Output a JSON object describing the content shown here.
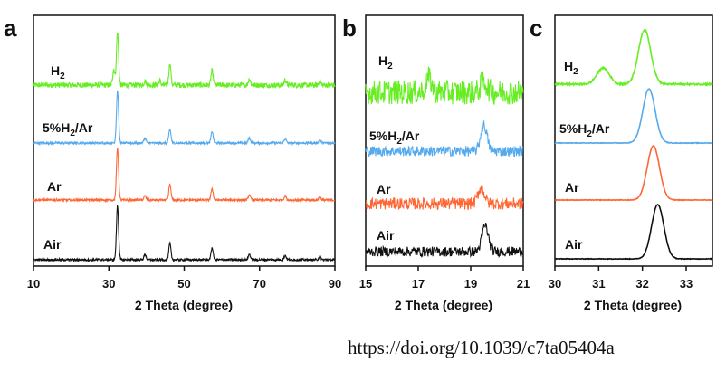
{
  "doi": "https://doi.org/10.1039/c7ta05404a",
  "colors": {
    "H2": "#66ee22",
    "5%H2/Ar": "#55aaee",
    "Ar": "#ff6633",
    "Air": "#111111"
  },
  "chart_data": [
    {
      "panel": "a",
      "type": "line",
      "xlabel": "2 Theta (degree)",
      "xlim": [
        10,
        90
      ],
      "xticks": [
        10,
        30,
        50,
        70,
        90
      ],
      "y_ticks_shown": false,
      "series": [
        {
          "name": "H2",
          "label_sub": "2",
          "label_main": "H",
          "label_tail": "",
          "peaks": [
            [
              31.3,
              0.3
            ],
            [
              32.3,
              1.0
            ],
            [
              39.6,
              0.08
            ],
            [
              43.5,
              0.08
            ],
            [
              46.2,
              0.4
            ],
            [
              57.4,
              0.27
            ],
            [
              67.3,
              0.12
            ],
            [
              76.8,
              0.1
            ],
            [
              86.0,
              0.07
            ]
          ],
          "noise": 0.05
        },
        {
          "name": "5%H2/Ar",
          "label_main": "5%H",
          "label_sub": "2",
          "label_tail": "/Ar",
          "peaks": [
            [
              32.3,
              1.0
            ],
            [
              39.6,
              0.1
            ],
            [
              46.2,
              0.26
            ],
            [
              57.4,
              0.22
            ],
            [
              67.3,
              0.1
            ],
            [
              76.8,
              0.08
            ],
            [
              86.0,
              0.06
            ]
          ],
          "noise": 0.02
        },
        {
          "name": "Ar",
          "label_main": "Ar",
          "label_sub": "",
          "label_tail": "",
          "peaks": [
            [
              32.3,
              1.0
            ],
            [
              39.6,
              0.08
            ],
            [
              46.2,
              0.3
            ],
            [
              57.4,
              0.22
            ],
            [
              67.3,
              0.1
            ],
            [
              76.8,
              0.08
            ],
            [
              86.0,
              0.06
            ]
          ],
          "noise": 0.02
        },
        {
          "name": "Air",
          "label_main": "Air",
          "label_sub": "",
          "label_tail": "",
          "peaks": [
            [
              32.3,
              1.0
            ],
            [
              39.6,
              0.1
            ],
            [
              46.2,
              0.3
            ],
            [
              57.4,
              0.22
            ],
            [
              67.3,
              0.1
            ],
            [
              76.8,
              0.08
            ],
            [
              86.0,
              0.06
            ]
          ],
          "noise": 0.02
        }
      ]
    },
    {
      "panel": "b",
      "type": "line",
      "xlabel": "2 Theta (degree)",
      "xlim": [
        15,
        21
      ],
      "xticks": [
        15,
        17,
        19,
        21
      ],
      "y_ticks_shown": false,
      "series": [
        {
          "name": "H2",
          "label_main": "H",
          "label_sub": "2",
          "label_tail": "",
          "peaks": [
            [
              17.4,
              0.5
            ],
            [
              19.5,
              0.4
            ]
          ],
          "noise": 0.45
        },
        {
          "name": "5%H2/Ar",
          "label_main": "5%H",
          "label_sub": "2",
          "label_tail": "/Ar",
          "peaks": [
            [
              19.5,
              0.8
            ]
          ],
          "noise": 0.16
        },
        {
          "name": "Ar",
          "label_main": "Ar",
          "label_sub": "",
          "label_tail": "",
          "peaks": [
            [
              19.4,
              0.6
            ]
          ],
          "noise": 0.22
        },
        {
          "name": "Air",
          "label_main": "Air",
          "label_sub": "",
          "label_tail": "",
          "peaks": [
            [
              19.55,
              0.85
            ]
          ],
          "noise": 0.16
        }
      ]
    },
    {
      "panel": "c",
      "type": "line",
      "xlabel": "2 Theta (degree)",
      "xlim": [
        30,
        33.6
      ],
      "xticks": [
        30,
        31,
        32,
        33
      ],
      "y_ticks_shown": false,
      "series": [
        {
          "name": "H2",
          "label_main": "H",
          "label_sub": "2",
          "label_tail": "",
          "peaks": [
            [
              31.1,
              0.3
            ],
            [
              32.05,
              1.0
            ]
          ],
          "noise": 0.015
        },
        {
          "name": "5%H2/Ar",
          "label_main": "5%H",
          "label_sub": "2",
          "label_tail": "/Ar",
          "peaks": [
            [
              32.15,
              1.0
            ]
          ],
          "noise": 0.005
        },
        {
          "name": "Ar",
          "label_main": "Ar",
          "label_sub": "",
          "label_tail": "",
          "peaks": [
            [
              32.25,
              1.0
            ]
          ],
          "noise": 0.005
        },
        {
          "name": "Air",
          "label_main": "Air",
          "label_sub": "",
          "label_tail": "",
          "peaks": [
            [
              32.35,
              1.0
            ]
          ],
          "noise": 0.005
        }
      ]
    }
  ]
}
